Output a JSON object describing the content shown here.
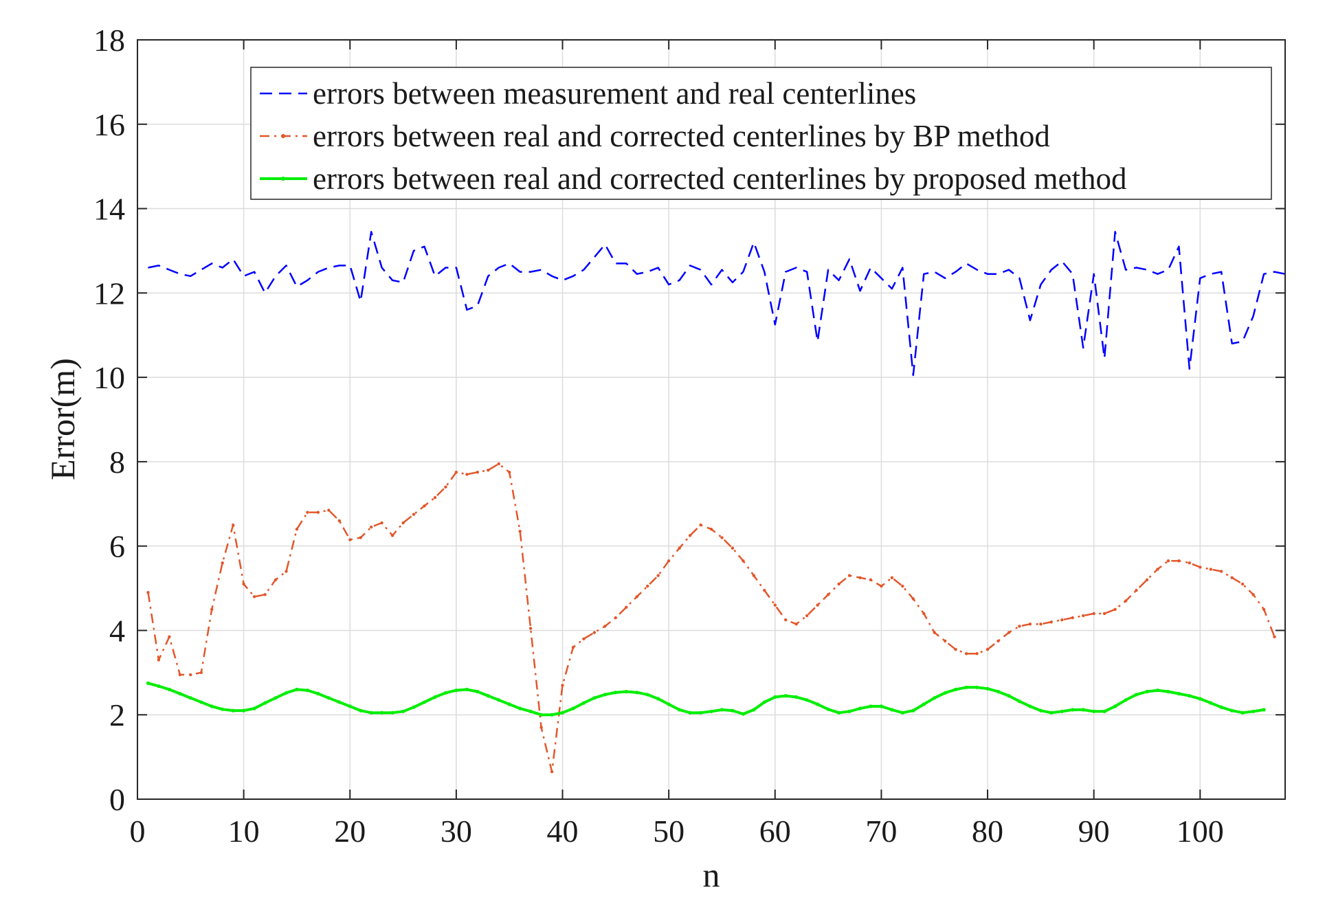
{
  "chart_data": {
    "type": "line",
    "xlabel": "n",
    "ylabel": "Error(m)",
    "xlim": [
      0,
      108
    ],
    "ylim": [
      0,
      18
    ],
    "xticks": [
      0,
      10,
      20,
      30,
      40,
      50,
      60,
      70,
      80,
      90,
      100
    ],
    "yticks": [
      0,
      2,
      4,
      6,
      8,
      10,
      12,
      14,
      16,
      18
    ],
    "grid": true,
    "legend_position": "top-right",
    "x_start": 1,
    "series": [
      {
        "name": "errors between measurement  and real centerlines",
        "color": "#0000ff",
        "style": "dashed",
        "marker": "none",
        "values": [
          12.6,
          12.65,
          12.55,
          12.45,
          12.4,
          12.55,
          12.7,
          12.6,
          12.8,
          12.4,
          12.5,
          12.0,
          12.4,
          12.65,
          12.15,
          12.3,
          12.5,
          12.6,
          12.65,
          12.65,
          11.8,
          13.45,
          12.6,
          12.3,
          12.25,
          13.0,
          13.1,
          12.4,
          12.6,
          12.6,
          11.6,
          11.7,
          12.4,
          12.6,
          12.7,
          12.5,
          12.5,
          12.55,
          12.4,
          12.3,
          12.4,
          12.55,
          12.85,
          13.15,
          12.7,
          12.7,
          12.45,
          12.5,
          12.6,
          12.2,
          12.3,
          12.65,
          12.55,
          12.2,
          12.55,
          12.25,
          12.5,
          13.2,
          12.5,
          11.25,
          12.5,
          12.6,
          12.5,
          10.85,
          12.55,
          12.3,
          12.8,
          12.05,
          12.6,
          12.35,
          12.1,
          12.6,
          10.05,
          12.45,
          12.5,
          12.35,
          12.5,
          12.7,
          12.55,
          12.45,
          12.45,
          12.55,
          12.35,
          11.35,
          12.2,
          12.55,
          12.75,
          12.45,
          10.7,
          12.45,
          10.45,
          13.45,
          12.55,
          12.6,
          12.55,
          12.45,
          12.55,
          13.1,
          10.2,
          12.35,
          12.45,
          12.5,
          10.8,
          10.85,
          11.45,
          12.45,
          12.5,
          12.45
        ]
      },
      {
        "name": "errors between real and corrected centerlines by BP method",
        "color": "#e2572a",
        "style": "dashdot",
        "marker": "dot",
        "values": [
          4.9,
          3.3,
          3.85,
          2.95,
          2.95,
          3.0,
          4.5,
          5.6,
          6.5,
          5.1,
          4.8,
          4.85,
          5.2,
          5.4,
          6.4,
          6.8,
          6.8,
          6.85,
          6.6,
          6.15,
          6.2,
          6.45,
          6.55,
          6.25,
          6.55,
          6.75,
          6.95,
          7.15,
          7.4,
          7.75,
          7.7,
          7.75,
          7.8,
          7.95,
          7.75,
          6.35,
          4.05,
          1.7,
          0.65,
          2.7,
          3.6,
          3.8,
          3.95,
          4.1,
          4.3,
          4.55,
          4.8,
          5.05,
          5.3,
          5.65,
          5.95,
          6.25,
          6.5,
          6.4,
          6.2,
          5.95,
          5.65,
          5.3,
          4.95,
          4.6,
          4.25,
          4.15,
          4.35,
          4.6,
          4.85,
          5.1,
          5.3,
          5.25,
          5.2,
          5.05,
          5.25,
          5.05,
          4.75,
          4.4,
          3.95,
          3.75,
          3.55,
          3.45,
          3.45,
          3.55,
          3.75,
          3.95,
          4.1,
          4.15,
          4.15,
          4.2,
          4.25,
          4.3,
          4.35,
          4.4,
          4.4,
          4.5,
          4.7,
          4.95,
          5.2,
          5.45,
          5.65,
          5.65,
          5.6,
          5.5,
          5.45,
          5.4,
          5.25,
          5.1,
          4.85,
          4.5,
          3.85
        ]
      },
      {
        "name": "errors between real and corrected centerlines by proposed method",
        "color": "#00ee00",
        "style": "solid",
        "marker": "dot",
        "values": [
          2.75,
          2.68,
          2.6,
          2.5,
          2.4,
          2.3,
          2.2,
          2.13,
          2.1,
          2.1,
          2.15,
          2.28,
          2.4,
          2.52,
          2.6,
          2.58,
          2.5,
          2.4,
          2.3,
          2.2,
          2.1,
          2.05,
          2.05,
          2.05,
          2.08,
          2.18,
          2.3,
          2.42,
          2.52,
          2.58,
          2.6,
          2.55,
          2.45,
          2.35,
          2.25,
          2.15,
          2.08,
          2.0,
          2.0,
          2.05,
          2.15,
          2.28,
          2.4,
          2.48,
          2.53,
          2.55,
          2.53,
          2.48,
          2.38,
          2.25,
          2.12,
          2.05,
          2.05,
          2.08,
          2.12,
          2.1,
          2.02,
          2.12,
          2.3,
          2.42,
          2.45,
          2.42,
          2.35,
          2.25,
          2.13,
          2.05,
          2.08,
          2.15,
          2.2,
          2.2,
          2.12,
          2.05,
          2.1,
          2.25,
          2.4,
          2.52,
          2.6,
          2.65,
          2.65,
          2.62,
          2.55,
          2.45,
          2.32,
          2.2,
          2.1,
          2.05,
          2.08,
          2.12,
          2.12,
          2.08,
          2.08,
          2.2,
          2.35,
          2.48,
          2.55,
          2.58,
          2.55,
          2.5,
          2.45,
          2.38,
          2.28,
          2.18,
          2.1,
          2.05,
          2.08,
          2.12
        ]
      }
    ]
  }
}
